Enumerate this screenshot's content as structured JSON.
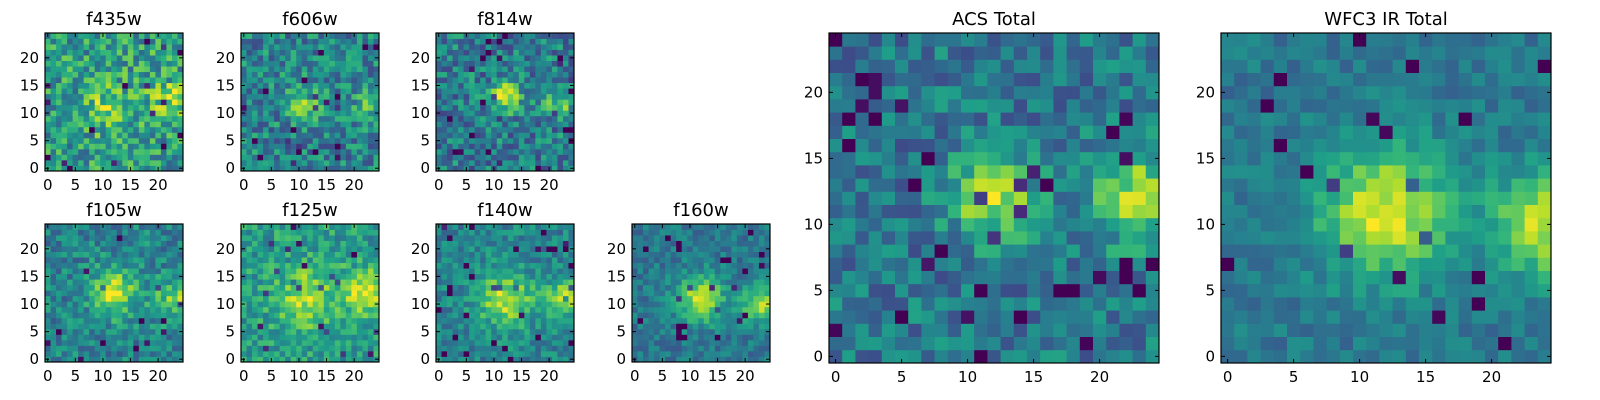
{
  "chart_data": [
    {
      "type": "heatmap",
      "title": "f435w",
      "xticks": [
        "0",
        "5",
        "10",
        "15",
        "20"
      ],
      "yticks": [
        "0",
        "5",
        "10",
        "15",
        "20"
      ],
      "grid": [
        25,
        25
      ],
      "xlim": [
        0,
        24
      ],
      "ylim": [
        0,
        24
      ],
      "colormap": "viridis",
      "hotspots": [
        {
          "x": 11,
          "y": 11,
          "amp": 0.25,
          "sigma": 3.0
        },
        {
          "x": 22,
          "y": 13,
          "amp": 0.3,
          "sigma": 2.5
        }
      ],
      "noise": 0.5,
      "base": 0.55
    },
    {
      "type": "heatmap",
      "title": "f606w",
      "xticks": [
        "0",
        "5",
        "10",
        "15",
        "20"
      ],
      "yticks": [
        "0",
        "5",
        "10",
        "15",
        "20"
      ],
      "grid": [
        25,
        25
      ],
      "xlim": [
        0,
        24
      ],
      "ylim": [
        0,
        24
      ],
      "colormap": "viridis",
      "hotspots": [
        {
          "x": 11,
          "y": 12,
          "amp": 0.35,
          "sigma": 2.0
        },
        {
          "x": 23,
          "y": 12,
          "amp": 0.3,
          "sigma": 2.0
        }
      ],
      "noise": 0.45,
      "base": 0.45
    },
    {
      "type": "heatmap",
      "title": "f814w",
      "xticks": [
        "0",
        "5",
        "10",
        "15",
        "20"
      ],
      "yticks": [
        "0",
        "5",
        "10",
        "15",
        "20"
      ],
      "grid": [
        25,
        25
      ],
      "xlim": [
        0,
        24
      ],
      "ylim": [
        0,
        24
      ],
      "colormap": "viridis",
      "hotspots": [
        {
          "x": 12,
          "y": 13,
          "amp": 0.45,
          "sigma": 2.0
        },
        {
          "x": 22,
          "y": 12,
          "amp": 0.3,
          "sigma": 2.0
        }
      ],
      "noise": 0.45,
      "base": 0.42
    },
    {
      "type": "heatmap",
      "title": "f105w",
      "xticks": [
        "0",
        "5",
        "10",
        "15",
        "20"
      ],
      "yticks": [
        "0",
        "5",
        "10",
        "15",
        "20"
      ],
      "grid": [
        25,
        25
      ],
      "xlim": [
        0,
        24
      ],
      "ylim": [
        0,
        24
      ],
      "colormap": "viridis",
      "hotspots": [
        {
          "x": 12,
          "y": 12,
          "amp": 0.45,
          "sigma": 3.0
        },
        {
          "x": 23,
          "y": 11,
          "amp": 0.35,
          "sigma": 2.5
        }
      ],
      "noise": 0.35,
      "base": 0.45
    },
    {
      "type": "heatmap",
      "title": "f125w",
      "xticks": [
        "0",
        "5",
        "10",
        "15",
        "20"
      ],
      "yticks": [
        "0",
        "5",
        "10",
        "15",
        "20"
      ],
      "grid": [
        25,
        25
      ],
      "xlim": [
        0,
        24
      ],
      "ylim": [
        0,
        24
      ],
      "colormap": "viridis",
      "hotspots": [
        {
          "x": 11,
          "y": 11,
          "amp": 0.35,
          "sigma": 3.5
        },
        {
          "x": 22,
          "y": 12,
          "amp": 0.35,
          "sigma": 3.0
        }
      ],
      "noise": 0.35,
      "base": 0.55
    },
    {
      "type": "heatmap",
      "title": "f140w",
      "xticks": [
        "0",
        "5",
        "10",
        "15",
        "20"
      ],
      "yticks": [
        "0",
        "5",
        "10",
        "15",
        "20"
      ],
      "grid": [
        25,
        25
      ],
      "xlim": [
        0,
        24
      ],
      "ylim": [
        0,
        24
      ],
      "colormap": "viridis",
      "hotspots": [
        {
          "x": 12,
          "y": 11,
          "amp": 0.45,
          "sigma": 3.5
        },
        {
          "x": 23,
          "y": 11,
          "amp": 0.4,
          "sigma": 2.5
        }
      ],
      "noise": 0.3,
      "base": 0.45
    },
    {
      "type": "heatmap",
      "title": "f160w",
      "xticks": [
        "0",
        "5",
        "10",
        "15",
        "20"
      ],
      "yticks": [
        "0",
        "5",
        "10",
        "15",
        "20"
      ],
      "grid": [
        25,
        25
      ],
      "xlim": [
        0,
        24
      ],
      "ylim": [
        0,
        24
      ],
      "colormap": "viridis",
      "hotspots": [
        {
          "x": 12,
          "y": 11,
          "amp": 0.5,
          "sigma": 3.0
        },
        {
          "x": 23,
          "y": 10,
          "amp": 0.45,
          "sigma": 2.5
        }
      ],
      "noise": 0.25,
      "base": 0.4
    },
    {
      "type": "heatmap",
      "title": "ACS Total",
      "xticks": [
        "0",
        "5",
        "10",
        "15",
        "20"
      ],
      "yticks": [
        "0",
        "5",
        "10",
        "15",
        "20"
      ],
      "grid": [
        25,
        25
      ],
      "xlim": [
        0,
        24
      ],
      "ylim": [
        0,
        24
      ],
      "colormap": "viridis",
      "hotspots": [
        {
          "x": 12,
          "y": 12,
          "amp": 0.5,
          "sigma": 2.2
        },
        {
          "x": 23,
          "y": 12,
          "amp": 0.45,
          "sigma": 2.5
        }
      ],
      "noise": 0.35,
      "base": 0.4
    },
    {
      "type": "heatmap",
      "title": "WFC3 IR Total",
      "xticks": [
        "0",
        "5",
        "10",
        "15",
        "20"
      ],
      "yticks": [
        "0",
        "5",
        "10",
        "15",
        "20"
      ],
      "grid": [
        25,
        25
      ],
      "xlim": [
        0,
        24
      ],
      "ylim": [
        0,
        24
      ],
      "colormap": "viridis",
      "hotspots": [
        {
          "x": 12,
          "y": 11,
          "amp": 0.55,
          "sigma": 3.5
        },
        {
          "x": 24,
          "y": 10,
          "amp": 0.5,
          "sigma": 2.8
        }
      ],
      "noise": 0.2,
      "base": 0.4
    }
  ]
}
